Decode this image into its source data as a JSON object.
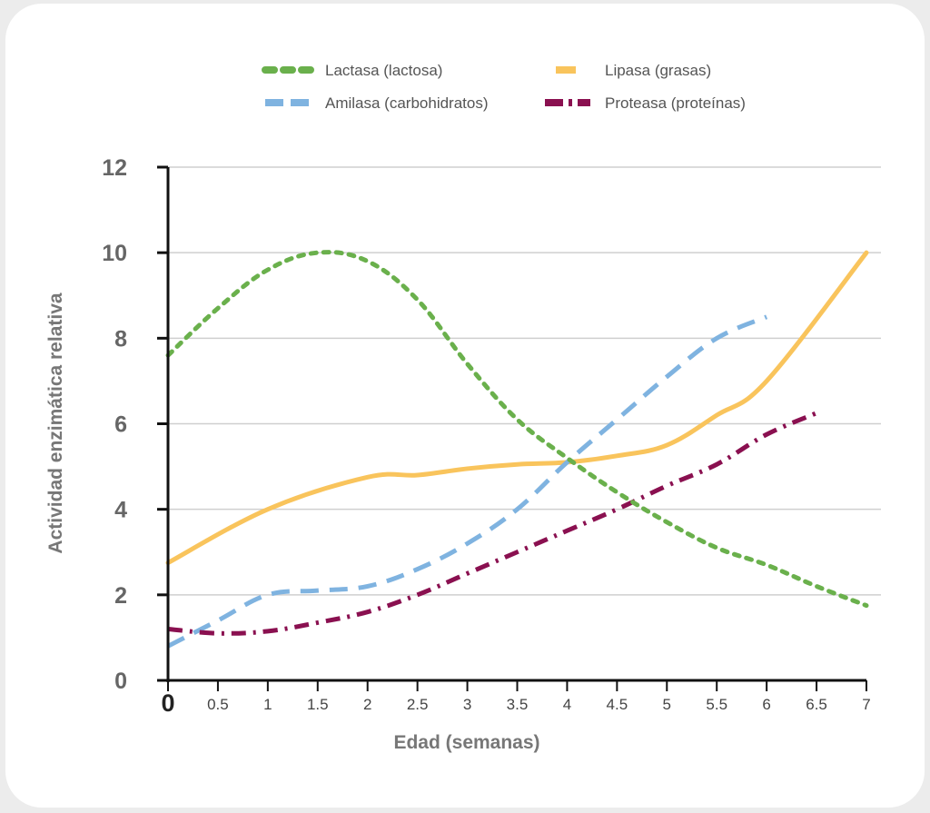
{
  "chart_data": {
    "type": "line",
    "xlabel": "Edad (semanas)",
    "ylabel": "Actividad enzimática relativa",
    "xlim": [
      0,
      7
    ],
    "ylim": [
      0,
      12
    ],
    "x_ticks": [
      "0",
      "0.5",
      "1",
      "1.5",
      "2",
      "2.5",
      "3",
      "3.5",
      "4",
      "4.5",
      "5",
      "5.5",
      "6",
      "6.5",
      "7"
    ],
    "y_ticks": [
      "0",
      "2",
      "4",
      "6",
      "8",
      "10",
      "12"
    ],
    "grid": true,
    "legend_position": "top",
    "series": [
      {
        "name": "Lactasa (lactosa)",
        "color": "#6ab04c",
        "dash": "dotted",
        "x": [
          0,
          0.5,
          1,
          1.5,
          2,
          2.5,
          3,
          3.5,
          4,
          4.5,
          5,
          5.5,
          6,
          6.5,
          7
        ],
        "y": [
          7.6,
          8.7,
          9.6,
          10.0,
          9.8,
          8.9,
          7.4,
          6.1,
          5.2,
          4.4,
          3.7,
          3.1,
          2.7,
          2.2,
          1.75
        ]
      },
      {
        "name": "Amilasa (carbohidratos)",
        "color": "#7fb3e0",
        "dash": "dashed",
        "x": [
          0,
          0.5,
          1,
          1.5,
          2,
          2.5,
          3,
          3.5,
          4,
          4.5,
          5,
          5.5,
          6
        ],
        "y": [
          0.8,
          1.4,
          2.0,
          2.1,
          2.2,
          2.6,
          3.2,
          4.0,
          5.1,
          6.1,
          7.1,
          8.0,
          8.5
        ]
      },
      {
        "name": "Lipasa (grasas)",
        "color": "#f9c45c",
        "dash": "solid",
        "x": [
          0,
          1,
          2,
          2.5,
          3,
          3.5,
          4,
          4.5,
          5,
          5.5,
          6,
          7
        ],
        "y": [
          2.75,
          4.0,
          4.75,
          4.8,
          4.95,
          5.05,
          5.1,
          5.25,
          5.5,
          6.2,
          7.0,
          10.0
        ]
      },
      {
        "name": "Proteasa (proteínas)",
        "color": "#8a1050",
        "dash": "dashdot",
        "x": [
          0,
          0.5,
          1,
          1.5,
          2,
          2.5,
          3,
          3.5,
          4,
          4.5,
          5,
          5.5,
          6,
          6.5
        ],
        "y": [
          1.2,
          1.1,
          1.15,
          1.35,
          1.6,
          2.0,
          2.5,
          3.0,
          3.5,
          4.0,
          4.55,
          5.05,
          5.75,
          6.25
        ]
      }
    ]
  }
}
